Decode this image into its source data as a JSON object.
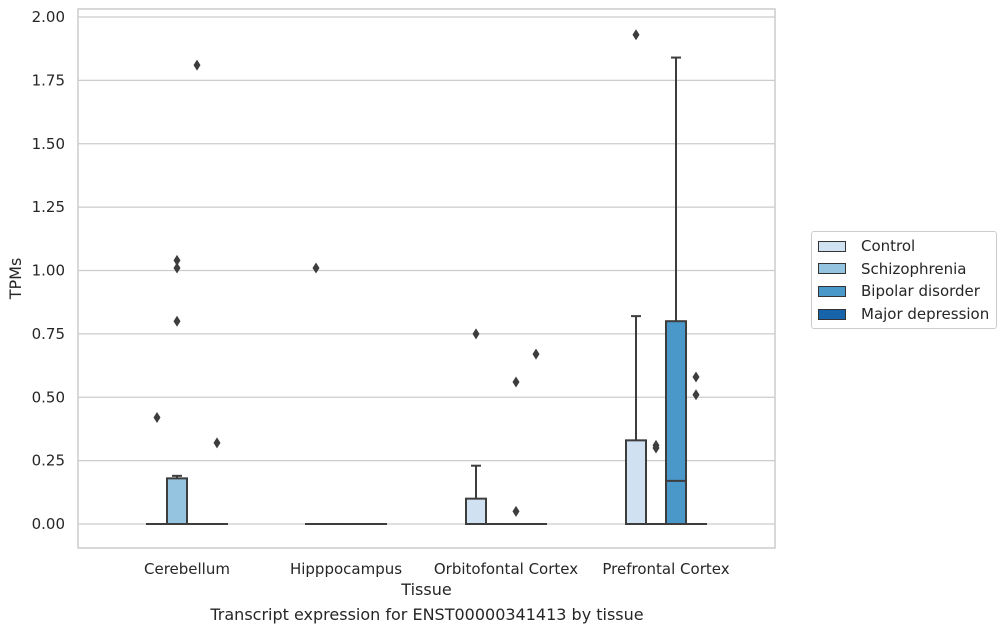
{
  "chart_data": {
    "type": "box",
    "xlabel": "Tissue",
    "ylabel": "TPMs",
    "caption": "Transcript expression for ENST00000341413 by tissue",
    "ylim": [
      -0.09,
      2.03
    ],
    "yticks": [
      "0.00",
      "0.25",
      "0.50",
      "0.75",
      "1.00",
      "1.25",
      "1.50",
      "1.75",
      "2.00"
    ],
    "ytick_values": [
      0,
      0.25,
      0.5,
      0.75,
      1.0,
      1.25,
      1.5,
      1.75,
      2.0
    ],
    "grid": true,
    "legend_position": "right",
    "categories": [
      "Cerebellum",
      "Hipppocampus",
      "Orbitofontal Cortex",
      "Prefrontal Cortex"
    ],
    "series": [
      {
        "name": "Control",
        "color": "#d0e1f2",
        "boxes": [
          {
            "q1": 0,
            "median": 0,
            "q3": 0,
            "whisker_low": 0,
            "whisker_high": 0,
            "outliers": [
              0.42
            ]
          },
          {
            "q1": 0,
            "median": 0,
            "q3": 0,
            "whisker_low": 0,
            "whisker_high": 0,
            "outliers": [
              1.01
            ]
          },
          {
            "q1": 0,
            "median": 0,
            "q3": 0.1,
            "whisker_low": 0,
            "whisker_high": 0.23,
            "outliers": [
              0.75
            ]
          },
          {
            "q1": 0,
            "median": 0,
            "q3": 0.33,
            "whisker_low": 0,
            "whisker_high": 0.82,
            "outliers": [
              1.93
            ]
          }
        ]
      },
      {
        "name": "Schizophrenia",
        "color": "#94c4df",
        "boxes": [
          {
            "q1": 0,
            "median": 0,
            "q3": 0.18,
            "whisker_low": 0,
            "whisker_high": 0.19,
            "outliers": [
              0.8,
              1.01,
              1.04
            ]
          },
          {
            "q1": 0,
            "median": 0,
            "q3": 0,
            "whisker_low": 0,
            "whisker_high": 0,
            "outliers": []
          },
          {
            "q1": 0,
            "median": 0,
            "q3": 0,
            "whisker_low": 0,
            "whisker_high": 0,
            "outliers": []
          },
          {
            "q1": 0,
            "median": 0,
            "q3": 0,
            "whisker_low": 0,
            "whisker_high": 0,
            "outliers": [
              0.3,
              0.31
            ]
          }
        ]
      },
      {
        "name": "Bipolar disorder",
        "color": "#4a98c9",
        "boxes": [
          {
            "q1": 0,
            "median": 0,
            "q3": 0,
            "whisker_low": 0,
            "whisker_high": 0,
            "outliers": [
              1.81
            ]
          },
          {
            "q1": 0,
            "median": 0,
            "q3": 0,
            "whisker_low": 0,
            "whisker_high": 0,
            "outliers": []
          },
          {
            "q1": 0,
            "median": 0,
            "q3": 0,
            "whisker_low": 0,
            "whisker_high": 0,
            "outliers": [
              0.05,
              0.56
            ]
          },
          {
            "q1": 0,
            "median": 0.17,
            "q3": 0.8,
            "whisker_low": 0,
            "whisker_high": 1.84,
            "outliers": []
          }
        ]
      },
      {
        "name": "Major depression",
        "color": "#1764ab",
        "boxes": [
          {
            "q1": 0,
            "median": 0,
            "q3": 0,
            "whisker_low": 0,
            "whisker_high": 0,
            "outliers": [
              0.32
            ]
          },
          {
            "q1": 0,
            "median": 0,
            "q3": 0,
            "whisker_low": 0,
            "whisker_high": 0,
            "outliers": []
          },
          {
            "q1": 0,
            "median": 0,
            "q3": 0,
            "whisker_low": 0,
            "whisker_high": 0,
            "outliers": [
              0.67
            ]
          },
          {
            "q1": 0,
            "median": 0,
            "q3": 0,
            "whisker_low": 0,
            "whisker_high": 0,
            "outliers": [
              0.51,
              0.58
            ]
          }
        ]
      }
    ]
  }
}
